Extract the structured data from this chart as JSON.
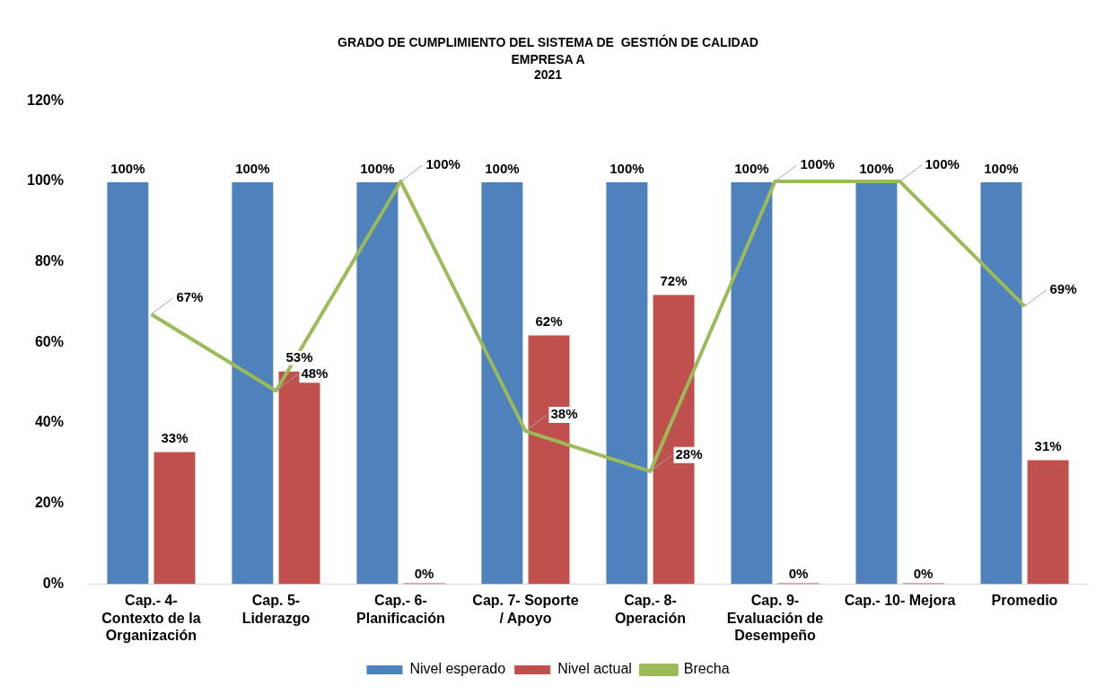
{
  "chart_data": {
    "type": "bar",
    "title": "GRADO DE CUMPLIMIENTO DEL SISTEMA DE  GESTIÓN DE CALIDAD",
    "subtitle": "EMPRESA A\n2021",
    "categories": [
      "Cap.- 4- Contexto de la Organización",
      "Cap. 5- Liderazgo",
      "Cap.- 6- Planificación",
      "Cap. 7-  Soporte / Apoyo",
      "Cap.- 8- Operación",
      "Cap. 9- Evaluación de Desempeño",
      "Cap.- 10- Mejora",
      "Promedio"
    ],
    "series": [
      {
        "name": "Nivel esperado",
        "color": "#4f81bd",
        "values": [
          100,
          100,
          100,
          100,
          100,
          100,
          100,
          100
        ],
        "value_labels": [
          "100%",
          "100%",
          "100%",
          "100%",
          "100%",
          "100%",
          "100%",
          "100%"
        ]
      },
      {
        "name": "Nivel actual",
        "color": "#c0504d",
        "values": [
          33,
          53,
          0,
          62,
          72,
          0,
          0,
          31
        ],
        "value_labels": [
          "33%",
          "53%",
          "0%",
          "62%",
          "72%",
          "0%",
          "0%",
          "31%"
        ]
      },
      {
        "name": "Brecha",
        "type": "line",
        "color": "#9bbb59",
        "marker": "none",
        "values": [
          67,
          48,
          100,
          38,
          28,
          100,
          100,
          69
        ],
        "value_labels": [
          "67%",
          "48%",
          "100%",
          "38%",
          "28%",
          "100%",
          "100%",
          "69%"
        ]
      }
    ],
    "ylim": [
      0,
      120
    ],
    "yticks": [
      {
        "value": 0,
        "label": "0%"
      },
      {
        "value": 20,
        "label": "20%"
      },
      {
        "value": 40,
        "label": "40%"
      },
      {
        "value": 60,
        "label": "60%"
      },
      {
        "value": 80,
        "label": "80%"
      },
      {
        "value": 100,
        "label": "100%"
      },
      {
        "value": 120,
        "label": "120%"
      }
    ],
    "grid": false,
    "legend": "bottom"
  }
}
